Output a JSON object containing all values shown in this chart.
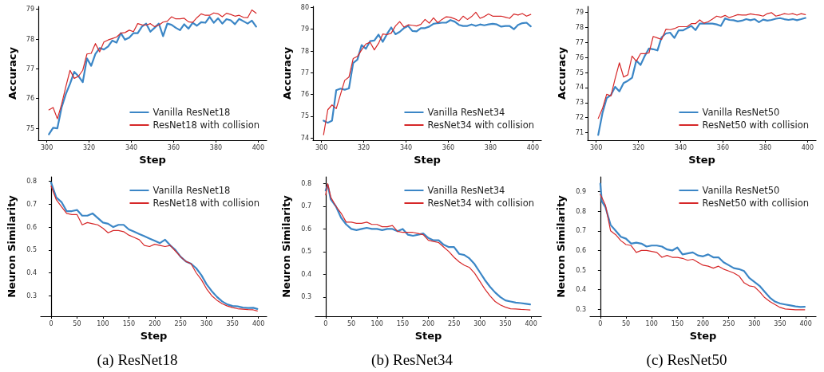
{
  "chart_data": [
    {
      "type": "line",
      "xlabel": "Step",
      "ylabel": "Accuracy",
      "xlim": [
        296,
        404
      ],
      "ylim": [
        74.6,
        79.1
      ],
      "xticks": [
        300,
        320,
        340,
        360,
        380,
        400
      ],
      "yticks": [
        75,
        76,
        77,
        78,
        79
      ],
      "legend": "bottom right",
      "marker": "none",
      "line_style": "solid",
      "x": [
        301,
        303,
        305,
        307,
        309,
        311,
        313,
        315,
        317,
        319,
        321,
        323,
        325,
        327,
        329,
        331,
        333,
        335,
        337,
        339,
        341,
        343,
        345,
        347,
        349,
        351,
        353,
        355,
        357,
        359,
        361,
        363,
        365,
        367,
        369,
        371,
        373,
        375,
        377,
        379,
        381,
        383,
        385,
        387,
        389,
        391,
        393,
        395,
        397,
        399
      ],
      "series": [
        {
          "name": "Vanilla ResNet18",
          "color": "#3b86c6",
          "values": [
            74.8,
            75.02,
            75.0,
            75.7,
            76.15,
            76.5,
            76.9,
            76.75,
            76.55,
            77.35,
            77.1,
            77.5,
            77.7,
            77.65,
            77.75,
            77.95,
            77.88,
            78.2,
            77.98,
            78.05,
            78.2,
            78.2,
            78.42,
            78.52,
            78.25,
            78.38,
            78.52,
            78.1,
            78.52,
            78.48,
            78.38,
            78.3,
            78.5,
            78.35,
            78.55,
            78.45,
            78.57,
            78.55,
            78.75,
            78.55,
            78.7,
            78.52,
            78.67,
            78.63,
            78.5,
            78.68,
            78.6,
            78.52,
            78.62,
            78.42
          ]
        },
        {
          "name": "ResNet18 with collision",
          "color": "#d62728",
          "values": [
            75.62,
            75.7,
            75.32,
            75.8,
            76.4,
            76.95,
            76.68,
            76.75,
            76.95,
            77.5,
            77.52,
            77.85,
            77.57,
            77.9,
            77.97,
            78.02,
            78.07,
            78.2,
            78.22,
            78.3,
            78.25,
            78.52,
            78.48,
            78.47,
            78.52,
            78.42,
            78.47,
            78.57,
            78.6,
            78.75,
            78.68,
            78.68,
            78.7,
            78.58,
            78.56,
            78.72,
            78.85,
            78.8,
            78.8,
            78.88,
            78.85,
            78.75,
            78.87,
            78.83,
            78.77,
            78.8,
            78.73,
            78.72,
            78.98,
            78.87
          ]
        }
      ]
    },
    {
      "type": "line",
      "xlabel": "Step",
      "ylabel": "Accuracy",
      "xlim": [
        296,
        404
      ],
      "ylim": [
        73.9,
        80.05
      ],
      "xticks": [
        300,
        320,
        340,
        360,
        380,
        400
      ],
      "yticks": [
        74,
        75,
        76,
        77,
        78,
        79,
        80
      ],
      "legend": "bottom right",
      "marker": "none",
      "line_style": "solid",
      "x": [
        301,
        303,
        305,
        307,
        309,
        311,
        313,
        315,
        317,
        319,
        321,
        323,
        325,
        327,
        329,
        331,
        333,
        335,
        337,
        339,
        341,
        343,
        345,
        347,
        349,
        351,
        353,
        355,
        357,
        359,
        361,
        363,
        365,
        367,
        369,
        371,
        373,
        375,
        377,
        379,
        381,
        383,
        385,
        387,
        389,
        391,
        393,
        395,
        397,
        399
      ],
      "series": [
        {
          "name": "Vanilla ResNet34",
          "color": "#3b86c6",
          "values": [
            74.8,
            74.7,
            74.8,
            76.2,
            76.27,
            76.22,
            76.28,
            77.45,
            77.6,
            78.27,
            78.1,
            78.45,
            78.48,
            78.75,
            78.42,
            78.78,
            79.08,
            78.77,
            78.88,
            79.05,
            79.15,
            78.92,
            78.9,
            79.05,
            79.05,
            79.12,
            79.25,
            79.28,
            79.3,
            79.3,
            79.42,
            79.35,
            79.2,
            79.15,
            79.15,
            79.22,
            79.15,
            79.22,
            79.18,
            79.22,
            79.25,
            79.22,
            79.12,
            79.15,
            79.15,
            79.0,
            79.2,
            79.28,
            79.3,
            79.13
          ]
        },
        {
          "name": "ResNet34 with collision",
          "color": "#d62728",
          "values": [
            74.15,
            75.3,
            75.52,
            75.35,
            76.0,
            76.65,
            76.8,
            77.65,
            77.75,
            78.05,
            78.32,
            78.4,
            78.05,
            78.35,
            78.78,
            78.75,
            78.82,
            79.15,
            79.35,
            79.1,
            79.2,
            79.18,
            79.15,
            79.22,
            79.45,
            79.28,
            79.52,
            79.3,
            79.45,
            79.57,
            79.55,
            79.48,
            79.38,
            79.6,
            79.45,
            79.58,
            79.78,
            79.5,
            79.58,
            79.7,
            79.6,
            79.6,
            79.6,
            79.55,
            79.5,
            79.7,
            79.65,
            79.72,
            79.6,
            79.68
          ]
        }
      ]
    },
    {
      "type": "line",
      "xlabel": "Step",
      "ylabel": "Accuracy",
      "xlim": [
        296,
        404
      ],
      "ylim": [
        70.5,
        79.4
      ],
      "xticks": [
        300,
        320,
        340,
        360,
        380,
        400
      ],
      "yticks": [
        71,
        72,
        73,
        74,
        75,
        76,
        77,
        78,
        79
      ],
      "legend": "bottom right",
      "marker": "none",
      "line_style": "solid",
      "x": [
        301,
        303,
        305,
        307,
        309,
        311,
        313,
        315,
        317,
        319,
        321,
        323,
        325,
        327,
        329,
        331,
        333,
        335,
        337,
        339,
        341,
        343,
        345,
        347,
        349,
        351,
        353,
        355,
        357,
        359,
        361,
        363,
        365,
        367,
        369,
        371,
        373,
        375,
        377,
        379,
        381,
        383,
        385,
        387,
        389,
        391,
        393,
        395,
        397,
        399
      ],
      "series": [
        {
          "name": "Vanilla ResNet50",
          "color": "#3b86c6",
          "values": [
            70.85,
            72.3,
            73.3,
            73.5,
            74.05,
            73.75,
            74.3,
            74.45,
            74.65,
            75.8,
            75.5,
            76.1,
            76.6,
            76.55,
            76.47,
            77.35,
            77.6,
            77.65,
            77.3,
            77.8,
            77.8,
            77.95,
            78.1,
            77.82,
            78.25,
            78.25,
            78.25,
            78.25,
            78.2,
            78.1,
            78.6,
            78.5,
            78.48,
            78.4,
            78.45,
            78.55,
            78.48,
            78.55,
            78.35,
            78.52,
            78.45,
            78.5,
            78.58,
            78.62,
            78.55,
            78.5,
            78.55,
            78.48,
            78.55,
            78.63
          ]
        },
        {
          "name": "ResNet50 with collision",
          "color": "#d62728",
          "values": [
            71.95,
            72.6,
            73.55,
            73.45,
            74.6,
            75.65,
            74.7,
            74.85,
            76.1,
            75.75,
            76.25,
            76.25,
            76.3,
            77.4,
            77.3,
            77.2,
            77.88,
            77.85,
            77.92,
            78.05,
            78.05,
            78.05,
            78.25,
            78.25,
            78.5,
            78.28,
            78.38,
            78.55,
            78.75,
            78.68,
            78.8,
            78.65,
            78.75,
            78.85,
            78.82,
            78.82,
            78.9,
            78.85,
            78.82,
            78.75,
            78.92,
            78.98,
            78.75,
            78.82,
            78.92,
            78.87,
            78.92,
            78.82,
            78.92,
            78.85
          ]
        }
      ]
    },
    {
      "type": "line",
      "xlabel": "Step",
      "ylabel": "Neuron Similarity",
      "xlim": [
        -20,
        416
      ],
      "ylim": [
        0.21,
        0.82
      ],
      "xticks": [
        0,
        50,
        100,
        150,
        200,
        250,
        300,
        350,
        400
      ],
      "yticks": [
        0.3,
        0.4,
        0.5,
        0.6,
        0.7,
        0.8
      ],
      "legend": "top right",
      "marker": "none",
      "line_style": "solid",
      "annotations": [
        "(a) ResNet18"
      ],
      "x": [
        0,
        10,
        20,
        30,
        40,
        50,
        60,
        70,
        80,
        90,
        100,
        110,
        120,
        130,
        140,
        150,
        160,
        170,
        180,
        190,
        200,
        210,
        220,
        230,
        240,
        250,
        260,
        270,
        280,
        290,
        300,
        310,
        320,
        330,
        340,
        350,
        360,
        370,
        380,
        390,
        398
      ],
      "series": [
        {
          "name": "Vanilla ResNet18",
          "color": "#3b86c6",
          "values": [
            0.795,
            0.73,
            0.71,
            0.67,
            0.67,
            0.675,
            0.65,
            0.65,
            0.66,
            0.64,
            0.62,
            0.615,
            0.6,
            0.61,
            0.61,
            0.59,
            0.58,
            0.57,
            0.56,
            0.55,
            0.54,
            0.53,
            0.545,
            0.52,
            0.5,
            0.47,
            0.45,
            0.44,
            0.42,
            0.39,
            0.35,
            0.32,
            0.295,
            0.275,
            0.262,
            0.255,
            0.253,
            0.248,
            0.246,
            0.247,
            0.242
          ]
        },
        {
          "name": "ResNet18 with collision",
          "color": "#d62728",
          "values": [
            0.78,
            0.72,
            0.69,
            0.66,
            0.655,
            0.655,
            0.61,
            0.62,
            0.615,
            0.61,
            0.595,
            0.575,
            0.585,
            0.585,
            0.58,
            0.565,
            0.555,
            0.545,
            0.52,
            0.515,
            0.525,
            0.52,
            0.515,
            0.52,
            0.495,
            0.47,
            0.45,
            0.44,
            0.4,
            0.37,
            0.33,
            0.3,
            0.28,
            0.265,
            0.255,
            0.248,
            0.243,
            0.241,
            0.239,
            0.238,
            0.233
          ]
        }
      ]
    },
    {
      "type": "line",
      "xlabel": "Step",
      "ylabel": "Neuron Similarity",
      "xlim": [
        -20,
        420
      ],
      "ylim": [
        0.215,
        0.83
      ],
      "xticks": [
        0,
        50,
        100,
        150,
        200,
        250,
        300,
        350,
        400
      ],
      "yticks": [
        0.3,
        0.4,
        0.5,
        0.6,
        0.7,
        0.8
      ],
      "legend": "top right",
      "marker": "none",
      "line_style": "solid",
      "annotations": [
        "(b) ResNet34"
      ],
      "x": [
        0,
        4,
        10,
        20,
        30,
        40,
        50,
        60,
        70,
        80,
        90,
        100,
        110,
        120,
        130,
        140,
        150,
        160,
        170,
        180,
        190,
        200,
        210,
        220,
        230,
        240,
        250,
        260,
        270,
        280,
        290,
        300,
        310,
        320,
        330,
        340,
        350,
        360,
        370,
        380,
        390,
        398
      ],
      "series": [
        {
          "name": "Vanilla ResNet34",
          "color": "#3b86c6",
          "values": [
            0.77,
            0.795,
            0.73,
            0.7,
            0.65,
            0.62,
            0.6,
            0.595,
            0.6,
            0.605,
            0.6,
            0.6,
            0.595,
            0.6,
            0.6,
            0.59,
            0.6,
            0.575,
            0.57,
            0.575,
            0.58,
            0.56,
            0.55,
            0.55,
            0.53,
            0.52,
            0.52,
            0.49,
            0.485,
            0.47,
            0.445,
            0.41,
            0.375,
            0.345,
            0.32,
            0.3,
            0.285,
            0.28,
            0.275,
            0.273,
            0.27,
            0.267
          ]
        },
        {
          "name": "ResNet34 with collision",
          "color": "#d62728",
          "values": [
            0.75,
            0.8,
            0.74,
            0.7,
            0.67,
            0.63,
            0.63,
            0.625,
            0.625,
            0.63,
            0.62,
            0.62,
            0.61,
            0.61,
            0.615,
            0.59,
            0.585,
            0.585,
            0.585,
            0.58,
            0.575,
            0.55,
            0.545,
            0.54,
            0.52,
            0.5,
            0.475,
            0.455,
            0.44,
            0.43,
            0.405,
            0.37,
            0.335,
            0.305,
            0.28,
            0.265,
            0.255,
            0.248,
            0.247,
            0.245,
            0.244,
            0.243
          ]
        }
      ]
    },
    {
      "type": "line",
      "xlabel": "Step",
      "ylabel": "Neuron Similarity",
      "xlim": [
        -20,
        420
      ],
      "ylim": [
        0.265,
        0.975
      ],
      "xticks": [
        0,
        50,
        100,
        150,
        200,
        250,
        300,
        350,
        400
      ],
      "yticks": [
        0.3,
        0.4,
        0.5,
        0.6,
        0.7,
        0.8,
        0.9
      ],
      "legend": "top right",
      "marker": "none",
      "line_style": "solid",
      "annotations": [
        "(c) ResNet50"
      ],
      "x": [
        0,
        3,
        10,
        20,
        30,
        40,
        50,
        60,
        70,
        80,
        90,
        100,
        110,
        120,
        130,
        140,
        150,
        160,
        170,
        180,
        190,
        200,
        210,
        220,
        230,
        240,
        250,
        260,
        270,
        280,
        290,
        300,
        310,
        320,
        330,
        340,
        350,
        360,
        370,
        380,
        390,
        398
      ],
      "series": [
        {
          "name": "Vanilla ResNet50",
          "color": "#3b86c6",
          "values": [
            0.94,
            0.85,
            0.82,
            0.73,
            0.7,
            0.67,
            0.66,
            0.635,
            0.64,
            0.635,
            0.62,
            0.625,
            0.625,
            0.62,
            0.605,
            0.6,
            0.615,
            0.58,
            0.585,
            0.59,
            0.575,
            0.57,
            0.58,
            0.565,
            0.565,
            0.54,
            0.525,
            0.51,
            0.505,
            0.495,
            0.46,
            0.44,
            0.42,
            0.39,
            0.36,
            0.34,
            0.33,
            0.325,
            0.32,
            0.315,
            0.312,
            0.313
          ]
        },
        {
          "name": "ResNet50 with collision",
          "color": "#d62728",
          "values": [
            0.885,
            0.87,
            0.83,
            0.7,
            0.68,
            0.65,
            0.63,
            0.625,
            0.59,
            0.6,
            0.6,
            0.595,
            0.59,
            0.565,
            0.575,
            0.565,
            0.565,
            0.56,
            0.55,
            0.555,
            0.54,
            0.525,
            0.52,
            0.51,
            0.52,
            0.505,
            0.495,
            0.485,
            0.47,
            0.435,
            0.42,
            0.415,
            0.39,
            0.36,
            0.34,
            0.325,
            0.31,
            0.302,
            0.3,
            0.298,
            0.298,
            0.298
          ]
        }
      ]
    }
  ]
}
